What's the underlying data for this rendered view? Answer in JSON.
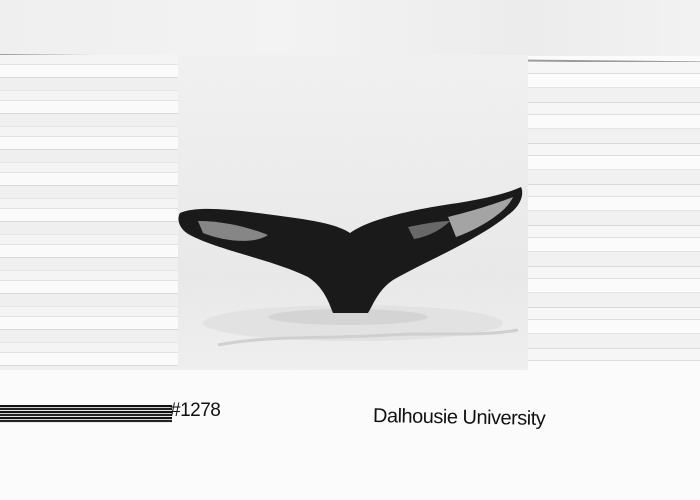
{
  "photo": {
    "subject_icon": "whale-fluke-icon",
    "tone": "grayscale"
  },
  "caption": {
    "catalog_id": "#1278",
    "credit": "Dalhousie University"
  },
  "colors": {
    "background": "#fbfbfb",
    "fluke": "#1a1a1a",
    "sea": "#f0f0f0"
  }
}
